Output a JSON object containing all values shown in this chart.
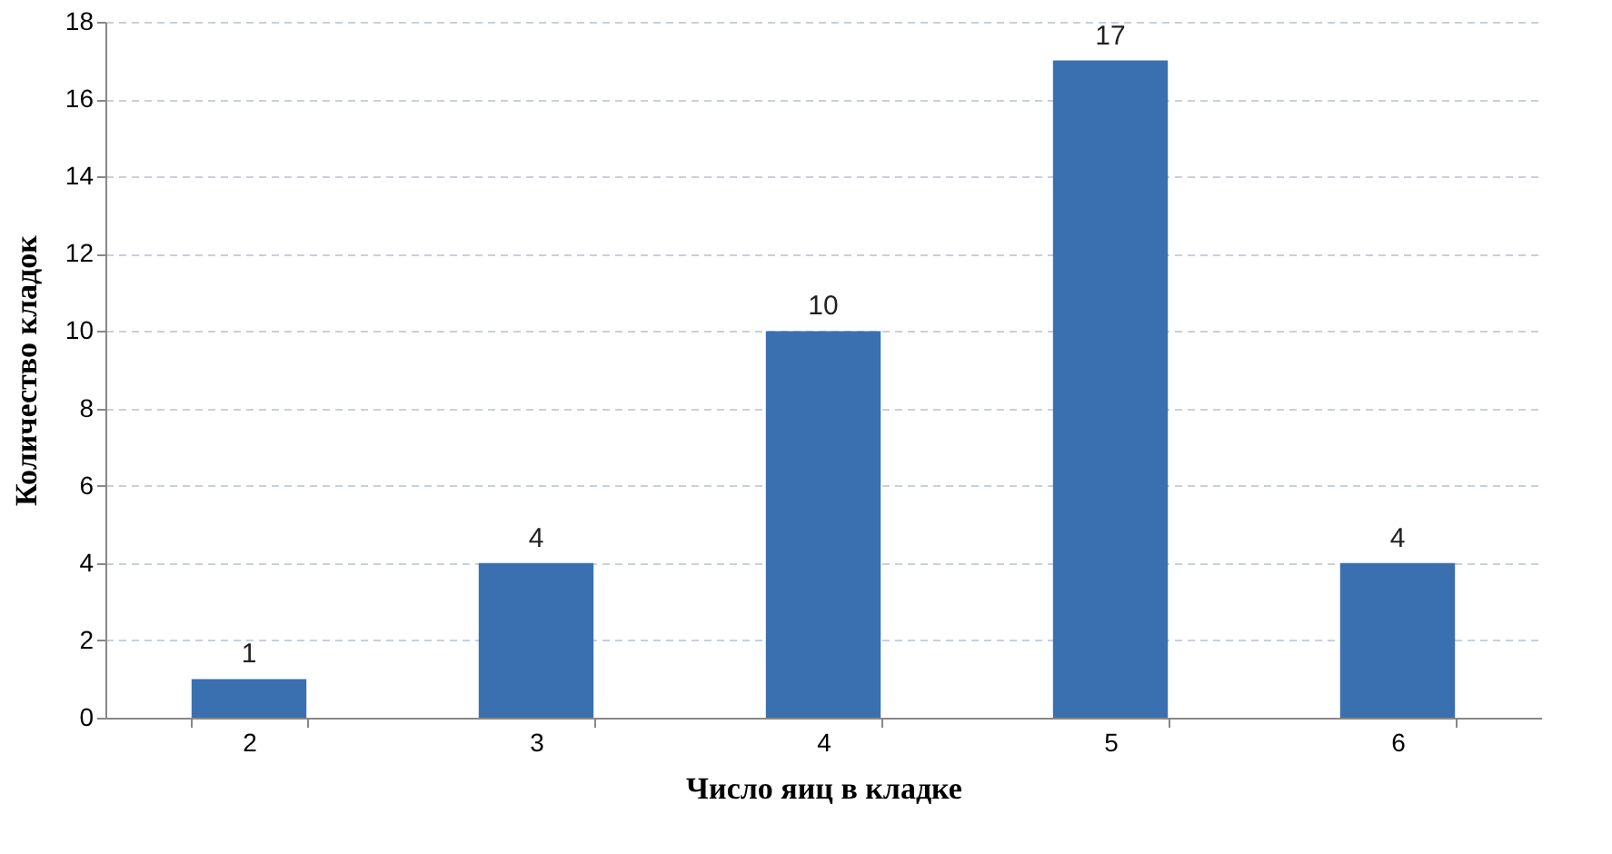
{
  "chart_data": {
    "type": "bar",
    "xlabel": "Число яиц в кладке",
    "ylabel": "Количество кладок",
    "categories": [
      "2",
      "3",
      "4",
      "5",
      "6"
    ],
    "values": [
      1,
      4,
      10,
      17,
      4
    ],
    "color": "#3a70b0",
    "ylim": [
      0,
      18
    ],
    "yticks": [
      0,
      2,
      4,
      6,
      8,
      10,
      12,
      14,
      16,
      18
    ],
    "grid": "y",
    "data_labels": true
  }
}
